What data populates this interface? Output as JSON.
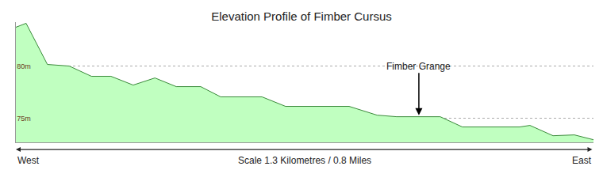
{
  "chart_data": {
    "type": "area",
    "title": "Elevation Profile of Fimber Cursus",
    "x_label": "Scale 1.3 Kilometres / 0.8 Miles",
    "x": [
      0,
      0.023,
      0.071,
      0.12,
      0.17,
      0.214,
      0.264,
      0.313,
      0.361,
      0.416,
      0.461,
      0.554,
      0.607,
      0.75,
      0.813,
      0.857,
      0.955,
      1.005,
      1.134,
      1.157,
      1.209,
      1.257,
      1.3
    ],
    "values": [
      83.71,
      84.09,
      80.15,
      80.0,
      79.02,
      79.02,
      78.18,
      78.86,
      78.03,
      78.03,
      77.05,
      77.05,
      76.14,
      76.14,
      75.3,
      75.15,
      75.15,
      74.17,
      74.17,
      74.32,
      73.33,
      73.41,
      72.95
    ],
    "color": "#c0ffc0",
    "xlim": [
      0,
      1.3
    ],
    "ylim": [
      72.7,
      84.2
    ],
    "xticks": [
      {
        "value": 0,
        "label": "West"
      },
      {
        "value": 1.3,
        "label": "East"
      }
    ],
    "yticks": [
      {
        "value": 75,
        "label": "75m"
      },
      {
        "value": 80,
        "label": "80m"
      }
    ],
    "grid": true,
    "annotations": [
      {
        "text": "Fimber Grange",
        "x": 0.907,
        "y": 75.3
      }
    ]
  }
}
